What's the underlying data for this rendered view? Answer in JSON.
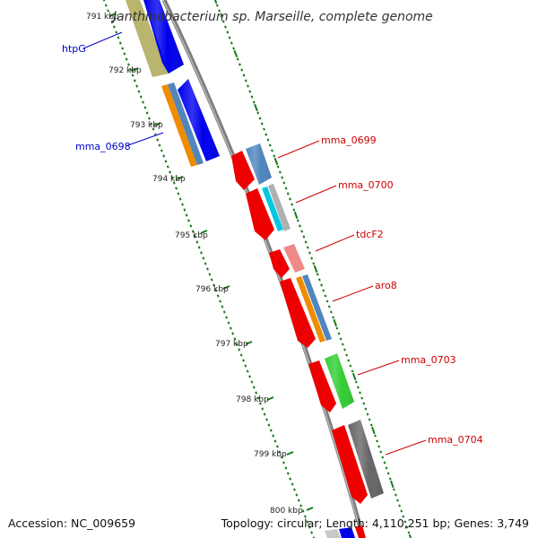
{
  "title": "Janthinobacterium sp. Marseille, complete genome",
  "footer": {
    "accession": "Accession: NC_009659",
    "summary": "Topology: circular; Length: 4,110,251 bp; Genes: 3,749"
  },
  "ticks": [
    "791 kbp",
    "792 kbp",
    "793 kbp",
    "794 kbp",
    "795 kbp",
    "796 kbp",
    "797 kbp",
    "798 kbp",
    "799 kbp",
    "800 kbp"
  ],
  "gene_labels": [
    {
      "name": "htpG",
      "color": "#0000cc"
    },
    {
      "name": "mma_0698",
      "color": "#0000cc"
    },
    {
      "name": "mma_0699",
      "color": "#cc0000"
    },
    {
      "name": "mma_0700",
      "color": "#cc0000"
    },
    {
      "name": "tdcF2",
      "color": "#cc0000"
    },
    {
      "name": "aro8",
      "color": "#cc0000"
    },
    {
      "name": "mma_0703",
      "color": "#cc0000"
    },
    {
      "name": "mma_0704",
      "color": "#cc0000"
    }
  ],
  "colors": {
    "backbone": "#888888",
    "tick_marks": "#1a7a1a",
    "cds_forward": "#0000ee",
    "cds_reverse": "#ee0000",
    "steelblue": "#4f86bd",
    "orange": "#f08c00",
    "olive": "#b9b46e",
    "cyan": "#00c8e0",
    "pink": "#f08a8a",
    "green": "#33cc33",
    "gray": "#666666"
  }
}
